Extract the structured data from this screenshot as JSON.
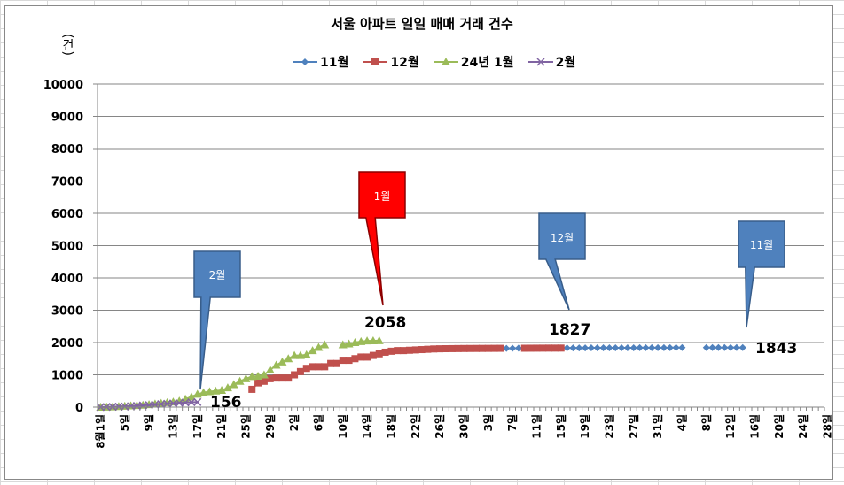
{
  "chart_data": {
    "type": "line",
    "title": "서울 아파트 일일 매매 거래 건수",
    "ylabel": "(건)",
    "ylim": [
      0,
      10000
    ],
    "yticks": [
      "0",
      "1000",
      "2000",
      "3000",
      "4000",
      "5000",
      "6000",
      "7000",
      "8000",
      "9000",
      "10000"
    ],
    "x_tick_labels": [
      "8월1일",
      "5일",
      "9일",
      "13일",
      "17일",
      "21일",
      "25일",
      "29일",
      "2일",
      "6일",
      "10일",
      "14일",
      "18일",
      "22일",
      "26일",
      "30일",
      "3일",
      "7일",
      "11일",
      "15일",
      "19일",
      "23일",
      "27일",
      "31일",
      "4일",
      "8일",
      "12일",
      "16일",
      "20일",
      "24일",
      "28일"
    ],
    "x_day_count": 120,
    "x_tick_every": 4,
    "legend_position": "top-center",
    "grid": true,
    "series": [
      {
        "name": "11월",
        "color": "#4F81BD",
        "marker": "diamond",
        "start_day": 68,
        "values": [
          1820,
          1822,
          1824,
          1825,
          1826,
          1827,
          1828,
          1829,
          1830,
          1830,
          1831,
          1832,
          1832,
          1833,
          1834,
          1834,
          1835,
          1835,
          1836,
          1836,
          1837,
          1837,
          1838,
          1838,
          1839,
          1839,
          1840,
          1840,
          1841,
          1841,
          null,
          null,
          null,
          1841,
          1842,
          1842,
          1842,
          1843,
          1843,
          1843
        ]
      },
      {
        "name": "12월",
        "color": "#C0504D",
        "marker": "square",
        "start_day": 26,
        "values": [
          550,
          750,
          800,
          880,
          900,
          900,
          900,
          1000,
          1100,
          1200,
          1250,
          1250,
          1250,
          1350,
          1350,
          1450,
          1450,
          1500,
          1550,
          1550,
          1600,
          1650,
          1700,
          1730,
          1750,
          1750,
          1760,
          1770,
          1780,
          1790,
          1800,
          1805,
          1808,
          1810,
          1812,
          1814,
          1815,
          1816,
          1817,
          1818,
          1819,
          1820,
          null,
          null,
          null,
          1822,
          1823,
          1824,
          1825,
          1826,
          1826,
          1827
        ]
      },
      {
        "name": "24년 1월",
        "color": "#9BBB59",
        "marker": "triangle",
        "start_day": 1,
        "values": [
          0,
          5,
          10,
          20,
          30,
          40,
          50,
          60,
          80,
          100,
          120,
          140,
          160,
          190,
          250,
          320,
          400,
          450,
          480,
          500,
          520,
          600,
          700,
          800,
          880,
          950,
          960,
          1000,
          1150,
          1300,
          1400,
          1500,
          1600,
          1600,
          1620,
          1750,
          1850,
          1930,
          null,
          null,
          1930,
          1960,
          2000,
          2030,
          2050,
          2055,
          2058
        ]
      },
      {
        "name": "2월",
        "color": "#8064A2",
        "marker": "x",
        "start_day": 1,
        "values": [
          0,
          5,
          10,
          15,
          20,
          30,
          40,
          55,
          65,
          80,
          95,
          105,
          115,
          130,
          140,
          150,
          156
        ]
      }
    ],
    "callouts": [
      {
        "text": "2월",
        "color": "#4F81BD"
      },
      {
        "text": "1월",
        "color": "#FF0000"
      },
      {
        "text": "12월",
        "color": "#4F81BD"
      },
      {
        "text": "11월",
        "color": "#4F81BD"
      }
    ],
    "data_labels": [
      "156",
      "2058",
      "1827",
      "1843"
    ]
  }
}
